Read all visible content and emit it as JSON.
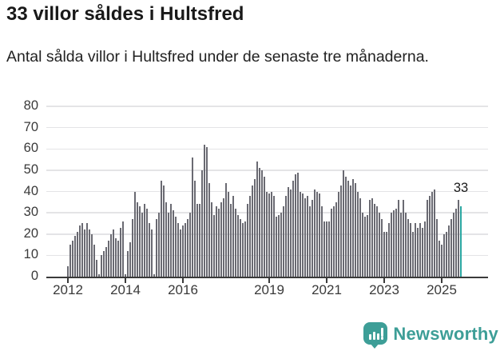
{
  "header": {
    "title": "33 villor såldes i Hultsfred",
    "subtitle": "Antal sålda villor i Hultsfred under de senaste tre månaderna."
  },
  "annotation": {
    "last_value_label": "33"
  },
  "footer": {
    "brand_name": "Newsworthy",
    "brand_icon": "newsworthy-bar-chart-bubble-icon"
  },
  "colors": {
    "bar": "#6a6a72",
    "highlight": "#29a5a0",
    "grid": "#e4e4e6",
    "axis": "#3a3a3a",
    "brand_teal": "#3d9e97",
    "text": "#191919"
  },
  "chart_data": {
    "type": "bar",
    "title": "33 villor såldes i Hultsfred",
    "subtitle": "Antal sålda villor i Hultsfred under de senaste tre månaderna.",
    "unit": "sålda villor (rullande 3 månader)",
    "start_month": "2012-01",
    "end_month": "2025-09",
    "x_tick_labels": [
      "2012",
      "2014",
      "2016",
      "2019",
      "2021",
      "2023",
      "2025"
    ],
    "y_ticks": [
      0,
      10,
      20,
      30,
      40,
      50,
      60,
      70,
      80
    ],
    "ylim": [
      0,
      80
    ],
    "grid": true,
    "highlight_last": true,
    "last_value": 33,
    "values": [
      5,
      15,
      17,
      19,
      21,
      24,
      25,
      22,
      25,
      22,
      20,
      15,
      8,
      1,
      10,
      12,
      14,
      17,
      20,
      22,
      18,
      17,
      23,
      26,
      1,
      12,
      16,
      27,
      40,
      35,
      33,
      30,
      34,
      32,
      25,
      22,
      1,
      27,
      30,
      45,
      43,
      35,
      30,
      34,
      31,
      28,
      25,
      22,
      24,
      25,
      27,
      30,
      56,
      45,
      34,
      34,
      50,
      62,
      61,
      44,
      35,
      29,
      33,
      32,
      35,
      37,
      44,
      40,
      34,
      38,
      32,
      29,
      27,
      25,
      26,
      34,
      38,
      43,
      46,
      54,
      51,
      50,
      47,
      40,
      39,
      40,
      38,
      28,
      29,
      30,
      33,
      38,
      42,
      41,
      45,
      48,
      49,
      40,
      39,
      37,
      38,
      33,
      36,
      41,
      40,
      39,
      33,
      26,
      26,
      26,
      32,
      33,
      35,
      40,
      43,
      50,
      47,
      45,
      43,
      46,
      44,
      40,
      37,
      30,
      28,
      29,
      36,
      37,
      34,
      33,
      30,
      27,
      21,
      21,
      25,
      30,
      31,
      32,
      36,
      30,
      36,
      30,
      27,
      25,
      21,
      25,
      23,
      25,
      23,
      26,
      36,
      38,
      40,
      41,
      27,
      17,
      15,
      20,
      21,
      24,
      27,
      30,
      32,
      36,
      33
    ]
  }
}
